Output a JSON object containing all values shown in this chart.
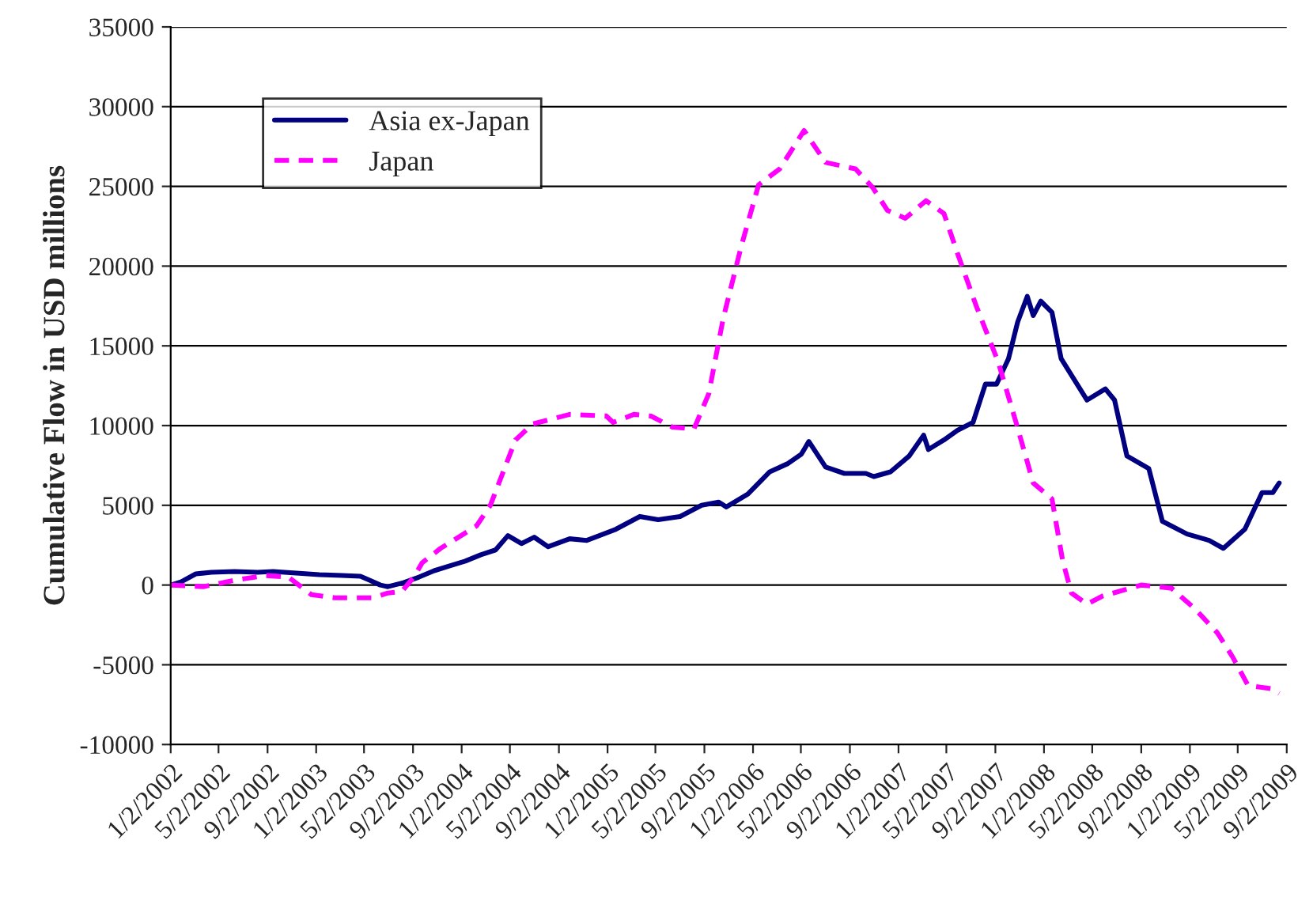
{
  "chart_data": {
    "type": "line",
    "ylabel": "Cumulative Flow in USD millions",
    "xlim": [
      "2002-01-02",
      "2009-09-02"
    ],
    "ylim": [
      -10000,
      35000
    ],
    "yticks": [
      -10000,
      -5000,
      0,
      5000,
      10000,
      15000,
      20000,
      25000,
      30000,
      35000
    ],
    "xticks": [
      {
        "value": "2002-01-02",
        "label": "1/2/2002"
      },
      {
        "value": "2002-05-02",
        "label": "5/2/2002"
      },
      {
        "value": "2002-09-02",
        "label": "9/2/2002"
      },
      {
        "value": "2003-01-02",
        "label": "1/2/2003"
      },
      {
        "value": "2003-05-02",
        "label": "5/2/2003"
      },
      {
        "value": "2003-09-02",
        "label": "9/2/2003"
      },
      {
        "value": "2004-01-02",
        "label": "1/2/2004"
      },
      {
        "value": "2004-05-02",
        "label": "5/2/2004"
      },
      {
        "value": "2004-09-02",
        "label": "9/2/2004"
      },
      {
        "value": "2005-01-02",
        "label": "1/2/2005"
      },
      {
        "value": "2005-05-02",
        "label": "5/2/2005"
      },
      {
        "value": "2005-09-02",
        "label": "9/2/2005"
      },
      {
        "value": "2006-01-02",
        "label": "1/2/2006"
      },
      {
        "value": "2006-05-02",
        "label": "5/2/2006"
      },
      {
        "value": "2006-09-02",
        "label": "9/2/2006"
      },
      {
        "value": "2007-01-02",
        "label": "1/2/2007"
      },
      {
        "value": "2007-05-02",
        "label": "5/2/2007"
      },
      {
        "value": "2007-09-02",
        "label": "9/2/2007"
      },
      {
        "value": "2008-01-02",
        "label": "1/2/2008"
      },
      {
        "value": "2008-05-02",
        "label": "5/2/2008"
      },
      {
        "value": "2008-09-02",
        "label": "9/2/2008"
      },
      {
        "value": "2009-01-02",
        "label": "1/2/2009"
      },
      {
        "value": "2009-05-02",
        "label": "5/2/2009"
      },
      {
        "value": "2009-09-02",
        "label": "9/2/2009"
      }
    ],
    "grid": "y",
    "legend": "top left",
    "marker": "none",
    "series": [
      {
        "name": "Asia ex-Japan",
        "color": "#000080",
        "line_style": "solid",
        "x": [
          "2002-01-02",
          "2002-01-28",
          "2002-03-06",
          "2002-04-14",
          "2002-06-11",
          "2002-08-08",
          "2002-09-16",
          "2002-11-13",
          "2003-01-10",
          "2003-03-07",
          "2003-04-23",
          "2003-05-16",
          "2003-06-12",
          "2003-07-01",
          "2003-08-09",
          "2003-09-17",
          "2003-10-25",
          "2003-12-03",
          "2004-01-11",
          "2004-02-19",
          "2004-03-27",
          "2004-04-27",
          "2004-05-31",
          "2004-07-02",
          "2004-08-06",
          "2004-09-29",
          "2004-11-11",
          "2005-01-23",
          "2005-03-24",
          "2005-05-09",
          "2005-07-03",
          "2005-08-26",
          "2005-10-08",
          "2005-10-27",
          "2005-12-20",
          "2006-02-13",
          "2006-03-29",
          "2006-05-03",
          "2006-05-22",
          "2006-07-03",
          "2006-08-19",
          "2006-10-12",
          "2006-11-01",
          "2006-12-13",
          "2007-01-29",
          "2007-03-06",
          "2007-03-18",
          "2007-04-26",
          "2007-05-30",
          "2007-07-08",
          "2007-08-08",
          "2007-09-05",
          "2007-10-05",
          "2007-10-28",
          "2007-11-21",
          "2007-12-06",
          "2007-12-25",
          "2008-01-22",
          "2008-02-14",
          "2008-03-15",
          "2008-04-19",
          "2008-06-04",
          "2008-06-27",
          "2008-07-28",
          "2008-09-21",
          "2008-10-25",
          "2008-12-26",
          "2009-02-19",
          "2009-03-27",
          "2009-05-20",
          "2009-07-02",
          "2009-07-29",
          "2009-08-14"
        ],
        "values": [
          0,
          200,
          700,
          800,
          850,
          800,
          850,
          750,
          650,
          600,
          550,
          300,
          0,
          -100,
          150,
          500,
          900,
          1200,
          1500,
          1900,
          2200,
          3100,
          2600,
          3000,
          2400,
          2900,
          2800,
          3500,
          4300,
          4100,
          4300,
          5000,
          5200,
          4900,
          5700,
          7100,
          7600,
          8200,
          9000,
          7400,
          7000,
          7000,
          6800,
          7100,
          8100,
          9400,
          8500,
          9100,
          9700,
          10200,
          12600,
          12600,
          14200,
          16500,
          18100,
          16900,
          17800,
          17100,
          14200,
          13000,
          11600,
          12300,
          11600,
          8100,
          7300,
          4000,
          3200,
          2800,
          2300,
          3500,
          5800,
          5800,
          6400
        ]
      },
      {
        "name": "Japan",
        "color": "#ff00ff",
        "line_style": "dashed",
        "x": [
          "2002-01-02",
          "2002-03-25",
          "2002-06-11",
          "2002-08-27",
          "2002-10-24",
          "2002-12-21",
          "2003-02-18",
          "2003-05-23",
          "2003-07-01",
          "2003-08-05",
          "2003-09-04",
          "2003-09-25",
          "2003-11-10",
          "2004-02-08",
          "2004-03-14",
          "2004-05-16",
          "2004-06-28",
          "2004-09-29",
          "2004-12-30",
          "2005-01-16",
          "2005-03-09",
          "2005-04-21",
          "2005-06-14",
          "2005-08-07",
          "2005-09-13",
          "2005-10-19",
          "2005-12-03",
          "2006-01-16",
          "2006-03-10",
          "2006-05-10",
          "2006-07-03",
          "2006-09-16",
          "2006-10-30",
          "2006-12-05",
          "2007-01-19",
          "2007-03-12",
          "2007-04-26",
          "2007-05-30",
          "2007-07-16",
          "2007-09-09",
          "2007-10-25",
          "2007-12-06",
          "2008-01-22",
          "2008-02-18",
          "2008-03-11",
          "2008-04-19",
          "2008-05-27",
          "2008-09-02",
          "2008-11-17",
          "2009-01-15",
          "2009-03-12",
          "2009-04-19",
          "2009-05-28",
          "2009-07-25",
          "2009-08-14"
        ],
        "values": [
          0,
          -100,
          300,
          600,
          500,
          -600,
          -800,
          -800,
          -500,
          -400,
          500,
          1400,
          2300,
          3700,
          5000,
          9100,
          10100,
          10700,
          10600,
          10200,
          10700,
          10600,
          9900,
          9800,
          12000,
          16700,
          21200,
          25100,
          26100,
          28500,
          26500,
          26100,
          24900,
          23500,
          23000,
          24100,
          23300,
          20800,
          17500,
          14000,
          10100,
          6400,
          5400,
          1500,
          -500,
          -1200,
          -700,
          0,
          -200,
          -1500,
          -3000,
          -4500,
          -6300,
          -6500,
          -6800
        ]
      }
    ]
  }
}
